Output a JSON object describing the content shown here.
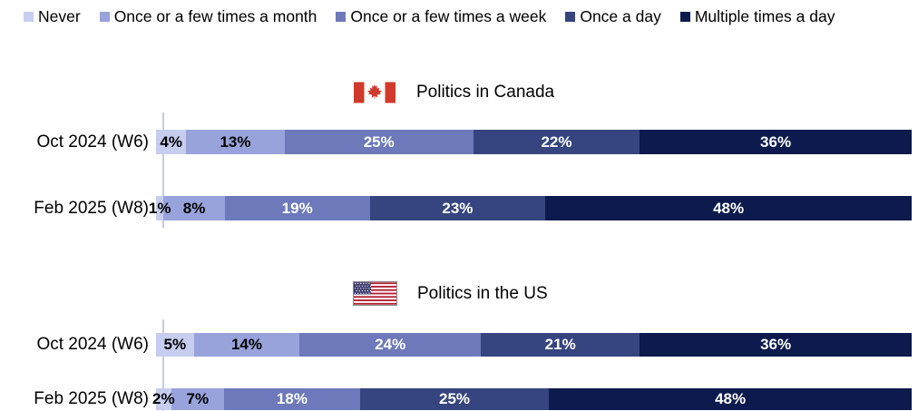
{
  "legend": {
    "items": [
      {
        "label": "Never",
        "color": "#c7cdef"
      },
      {
        "label": "Once or a few times a month",
        "color": "#98a2db"
      },
      {
        "label": "Once or a few times a week",
        "color": "#6d79bb"
      },
      {
        "label": "Once a day",
        "color": "#36457f"
      },
      {
        "label": "Multiple times a day",
        "color": "#0d1a4d"
      }
    ]
  },
  "chart_data": {
    "type": "bar",
    "orientation": "horizontal-stacked",
    "unit": "%",
    "xlim": [
      0,
      100
    ],
    "grid": false,
    "legend_position": "top",
    "categories": [
      "Never",
      "Once or a few times a month",
      "Once or a few times a week",
      "Once a day",
      "Multiple times a day"
    ],
    "charts": [
      {
        "title": "Politics in Canada",
        "flag": "canada-flag",
        "rows": [
          {
            "label": "Oct 2024 (W6)",
            "values": [
              4,
              13,
              25,
              22,
              36
            ]
          },
          {
            "label": "Feb 2025 (W8)",
            "values": [
              1,
              8,
              19,
              23,
              48
            ]
          }
        ]
      },
      {
        "title": "Politics in the US",
        "flag": "us-flag",
        "rows": [
          {
            "label": "Oct 2024 (W6)",
            "values": [
              5,
              14,
              24,
              21,
              36
            ]
          },
          {
            "label": "Feb 2025 (W8)",
            "values": [
              2,
              7,
              18,
              25,
              48
            ]
          }
        ]
      }
    ],
    "colors": {
      "axis_line": "#c6cbe6",
      "label_on_light": "#000000",
      "label_on_dark": "#ffffff"
    }
  }
}
